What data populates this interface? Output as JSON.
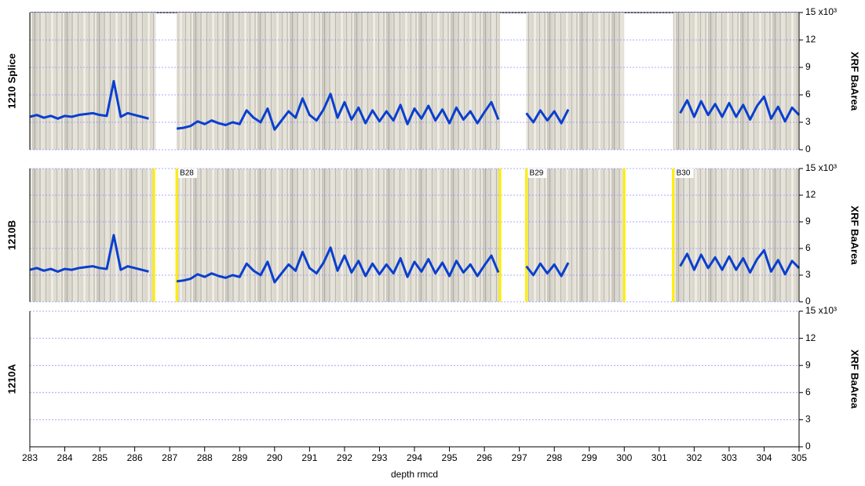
{
  "chart_data": [
    {
      "type": "line",
      "panel_label": "1210 Splice",
      "ylabel": "XRF BaArea",
      "xlim": [
        283,
        305
      ],
      "ylim": [
        0,
        15
      ],
      "yticks": [
        0,
        3,
        6,
        9,
        12,
        {
          "value": 15,
          "label": "15 x10³"
        }
      ],
      "grid": true,
      "core_images": [
        [
          283,
          286.6
        ],
        [
          287.2,
          296.45
        ],
        [
          297.2,
          300.0
        ],
        [
          301.4,
          305
        ]
      ],
      "x": [
        283.0,
        283.2,
        283.4,
        283.6,
        283.8,
        284.0,
        284.2,
        284.4,
        284.6,
        284.8,
        285.0,
        285.2,
        285.4,
        285.6,
        285.8,
        286.0,
        286.2,
        286.4,
        286.6,
        286.8,
        287.0,
        287.2,
        287.4,
        287.6,
        287.8,
        288.0,
        288.2,
        288.4,
        288.6,
        288.8,
        289.0,
        289.2,
        289.4,
        289.6,
        289.8,
        290.0,
        290.2,
        290.4,
        290.6,
        290.8,
        291.0,
        291.2,
        291.4,
        291.6,
        291.8,
        292.0,
        292.2,
        292.4,
        292.6,
        292.8,
        293.0,
        293.2,
        293.4,
        293.6,
        293.8,
        294.0,
        294.2,
        294.4,
        294.6,
        294.8,
        295.0,
        295.2,
        295.4,
        295.6,
        295.8,
        296.0,
        296.2,
        296.4,
        296.6,
        296.8,
        297.0,
        297.2,
        297.4,
        297.6,
        297.8,
        298.0,
        298.2,
        298.4,
        298.6,
        298.8,
        299.0,
        299.2,
        299.4,
        299.6,
        299.8,
        300.0,
        300.2,
        300.4,
        300.6,
        300.8,
        301.0,
        301.2,
        301.4,
        301.6,
        301.8,
        302.0,
        302.2,
        302.4,
        302.6,
        302.8,
        303.0,
        303.2,
        303.4,
        303.6,
        303.8,
        304.0,
        304.2,
        304.4,
        304.6,
        304.8,
        305.0
      ],
      "series": [
        {
          "color": "#0a3fcf",
          "values": [
            3.6,
            3.8,
            3.5,
            3.7,
            3.4,
            3.7,
            3.6,
            3.8,
            3.9,
            4.0,
            3.8,
            3.7,
            7.5,
            3.6,
            4.0,
            3.8,
            3.6,
            3.4,
            null,
            null,
            null,
            2.3,
            2.4,
            2.6,
            3.1,
            2.8,
            3.2,
            2.9,
            2.7,
            3.0,
            2.8,
            4.3,
            3.5,
            3.0,
            4.5,
            2.2,
            3.2,
            4.2,
            3.5,
            5.6,
            3.8,
            3.2,
            4.4,
            6.1,
            3.5,
            5.2,
            3.3,
            4.6,
            2.9,
            4.3,
            3.1,
            4.2,
            3.2,
            4.9,
            2.8,
            4.5,
            3.4,
            4.8,
            3.2,
            4.4,
            2.9,
            4.6,
            3.3,
            4.2,
            2.9,
            4.1,
            5.2,
            3.3,
            null,
            null,
            null,
            4.0,
            3.0,
            4.3,
            3.2,
            4.2,
            2.9,
            4.4,
            null,
            null,
            null,
            null,
            null,
            null,
            null,
            null,
            null,
            null,
            null,
            null,
            null,
            null,
            null,
            4.0,
            5.4,
            3.6,
            5.3,
            3.8,
            5.0,
            3.6,
            5.1,
            3.6,
            4.9,
            3.3,
            4.8,
            5.8,
            3.4,
            4.7,
            3.1,
            4.6,
            3.8
          ]
        }
      ]
    },
    {
      "type": "line",
      "panel_label": "1210B",
      "ylabel": "XRF BaArea",
      "xlim": [
        283,
        305
      ],
      "ylim": [
        0,
        15
      ],
      "yticks": [
        0,
        3,
        6,
        9,
        12,
        {
          "value": 15,
          "label": "15 x10³"
        }
      ],
      "grid": true,
      "core_images": [
        [
          283,
          286.55
        ],
        [
          287.2,
          296.45
        ],
        [
          297.2,
          300.0
        ],
        [
          301.4,
          305
        ]
      ],
      "core_bottoms": [
        286.55,
        296.45,
        300.0
      ],
      "core_tops": [
        {
          "x": 287.2,
          "label": "B28"
        },
        {
          "x": 297.2,
          "label": "B29"
        },
        {
          "x": 301.4,
          "label": "B30"
        }
      ],
      "marker_color": "#ffee00",
      "x": [
        283.0,
        283.2,
        283.4,
        283.6,
        283.8,
        284.0,
        284.2,
        284.4,
        284.6,
        284.8,
        285.0,
        285.2,
        285.4,
        285.6,
        285.8,
        286.0,
        286.2,
        286.4,
        286.6,
        286.8,
        287.0,
        287.2,
        287.4,
        287.6,
        287.8,
        288.0,
        288.2,
        288.4,
        288.6,
        288.8,
        289.0,
        289.2,
        289.4,
        289.6,
        289.8,
        290.0,
        290.2,
        290.4,
        290.6,
        290.8,
        291.0,
        291.2,
        291.4,
        291.6,
        291.8,
        292.0,
        292.2,
        292.4,
        292.6,
        292.8,
        293.0,
        293.2,
        293.4,
        293.6,
        293.8,
        294.0,
        294.2,
        294.4,
        294.6,
        294.8,
        295.0,
        295.2,
        295.4,
        295.6,
        295.8,
        296.0,
        296.2,
        296.4,
        296.6,
        296.8,
        297.0,
        297.2,
        297.4,
        297.6,
        297.8,
        298.0,
        298.2,
        298.4,
        298.6,
        298.8,
        299.0,
        299.2,
        299.4,
        299.6,
        299.8,
        300.0,
        300.2,
        300.4,
        300.6,
        300.8,
        301.0,
        301.2,
        301.4,
        301.6,
        301.8,
        302.0,
        302.2,
        302.4,
        302.6,
        302.8,
        303.0,
        303.2,
        303.4,
        303.6,
        303.8,
        304.0,
        304.2,
        304.4,
        304.6,
        304.8,
        305.0
      ],
      "series": [
        {
          "color": "#0a3fcf",
          "values": [
            3.6,
            3.8,
            3.5,
            3.7,
            3.4,
            3.7,
            3.6,
            3.8,
            3.9,
            4.0,
            3.8,
            3.7,
            7.5,
            3.6,
            4.0,
            3.8,
            3.6,
            3.4,
            null,
            null,
            null,
            2.3,
            2.4,
            2.6,
            3.1,
            2.8,
            3.2,
            2.9,
            2.7,
            3.0,
            2.8,
            4.3,
            3.5,
            3.0,
            4.5,
            2.2,
            3.2,
            4.2,
            3.5,
            5.6,
            3.8,
            3.2,
            4.4,
            6.1,
            3.5,
            5.2,
            3.3,
            4.6,
            2.9,
            4.3,
            3.1,
            4.2,
            3.2,
            4.9,
            2.8,
            4.5,
            3.4,
            4.8,
            3.2,
            4.4,
            2.9,
            4.6,
            3.3,
            4.2,
            2.9,
            4.1,
            5.2,
            3.3,
            null,
            null,
            null,
            4.0,
            3.0,
            4.3,
            3.2,
            4.2,
            2.9,
            4.4,
            null,
            null,
            null,
            null,
            null,
            null,
            null,
            null,
            null,
            null,
            null,
            null,
            null,
            null,
            null,
            4.0,
            5.4,
            3.6,
            5.3,
            3.8,
            5.0,
            3.6,
            5.1,
            3.6,
            4.9,
            3.3,
            4.8,
            5.8,
            3.4,
            4.7,
            3.1,
            4.6,
            3.8
          ]
        }
      ]
    },
    {
      "type": "line",
      "panel_label": "1210A",
      "ylabel": "XRF BaArea",
      "xlim": [
        283,
        305
      ],
      "ylim": [
        0,
        15
      ],
      "yticks": [
        0,
        3,
        6,
        9,
        12,
        {
          "value": 15,
          "label": "15 x10³"
        }
      ],
      "grid": true,
      "xlabel": "depth rmcd",
      "xticks": [
        283,
        284,
        285,
        286,
        287,
        288,
        289,
        290,
        291,
        292,
        293,
        294,
        295,
        296,
        297,
        298,
        299,
        300,
        301,
        302,
        303,
        304,
        305
      ],
      "series": []
    }
  ]
}
